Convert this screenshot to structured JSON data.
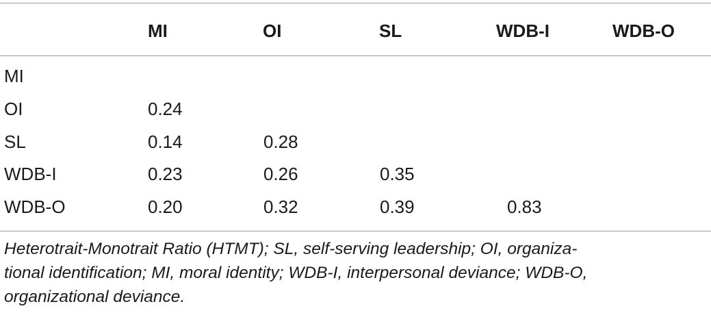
{
  "table": {
    "columns": [
      "MI",
      "OI",
      "SL",
      "WDB-I",
      "WDB-O"
    ],
    "rows": [
      {
        "label": "MI",
        "values": []
      },
      {
        "label": "OI",
        "values": [
          "0.24"
        ]
      },
      {
        "label": "SL",
        "values": [
          "0.14",
          "0.28"
        ]
      },
      {
        "label": "WDB-I",
        "values": [
          "0.23",
          "0.26",
          "0.35"
        ]
      },
      {
        "label": "WDB-O",
        "values": [
          "0.20",
          "0.32",
          "0.39",
          "0.83"
        ]
      }
    ]
  },
  "footnote": {
    "line1": "Heterotrait-Monotrait Ratio (HTMT); SL, self-serving leadership; OI, organiza-",
    "line2": "tional identification; MI, moral identity; WDB-I, interpersonal deviance; WDB-O,",
    "line3": "organizational deviance."
  }
}
